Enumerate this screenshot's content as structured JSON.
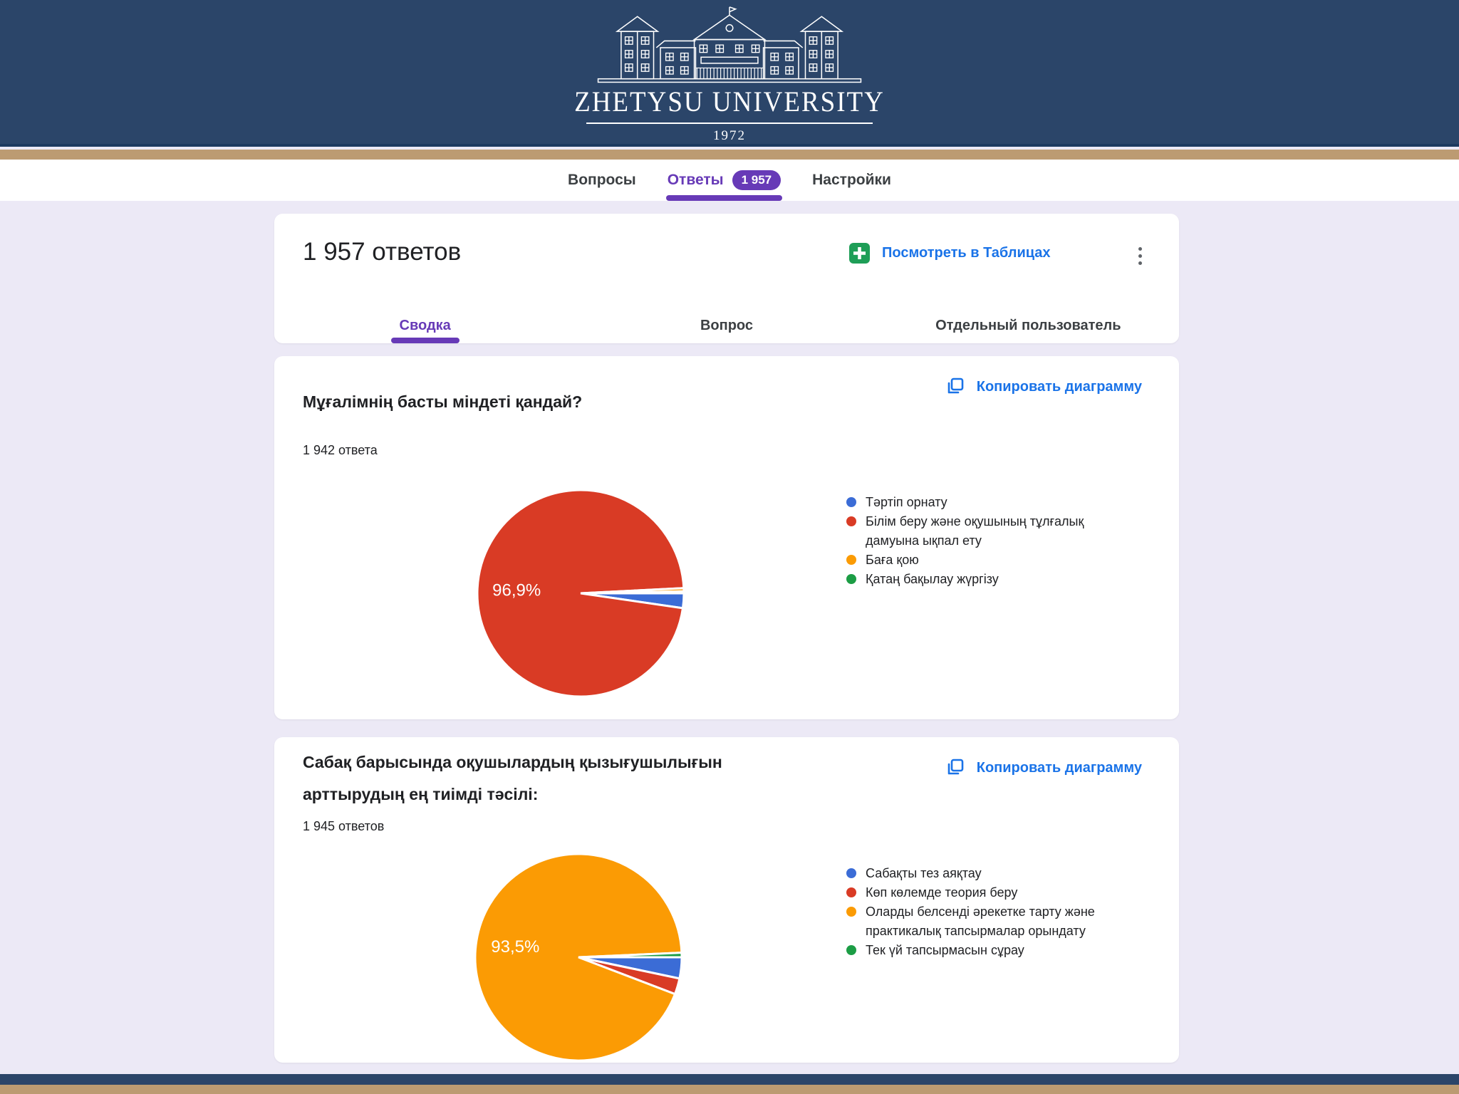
{
  "banner": {
    "university_name": "ZHETYSU UNIVERSITY",
    "established_year": "1972"
  },
  "nav": {
    "tabs": [
      {
        "label": "Вопросы",
        "active": false
      },
      {
        "label": "Ответы",
        "active": true,
        "badge": "1 957"
      },
      {
        "label": "Настройки",
        "active": false
      }
    ]
  },
  "summary_card": {
    "title": "1 957 ответов",
    "view_in_sheets_label": "Посмотреть в Таблицах",
    "tabs": [
      {
        "label": "Сводка",
        "active": true
      },
      {
        "label": "Вопрос",
        "active": false
      },
      {
        "label": "Отдельный пользователь",
        "active": false
      }
    ]
  },
  "copy_chart_label": "Копировать диаграмму",
  "colors": {
    "accent_purple": "#673AB7",
    "link_blue": "#1A73E8",
    "sheets_green": "#1E9E57",
    "page_background": "#ECE9F6",
    "banner_blue": "#2B4569",
    "stripe_tan": "#BC9B72",
    "slice_blue": "#3B6CD6",
    "slice_red": "#D93B25",
    "slice_orange": "#FB9B04",
    "slice_green": "#1C9D45"
  },
  "chart_data": [
    {
      "type": "pie",
      "title": "Мұғалімнің басты міндеті қандай?",
      "responses_label": "1 942 ответа",
      "center_label": "96,9%",
      "legend_position": "right",
      "slices": [
        {
          "label": "Тәртіп орнату",
          "value": 2.3,
          "color": "#3B6CD6"
        },
        {
          "label": "Білім беру және оқушының тұлғалық дамуына ықпал ету",
          "value": 96.9,
          "color": "#D93B25"
        },
        {
          "label": "Баға қою",
          "value": 0.5,
          "color": "#FB9B04"
        },
        {
          "label": "Қатаң бақылау жүргізу",
          "value": 0.3,
          "color": "#1C9D45"
        }
      ]
    },
    {
      "type": "pie",
      "title": "Сабақ барысында оқушылардың қызығушылығын арттырудың ең тиімді тәсілі:",
      "responses_label": "1 945 ответов",
      "center_label": "93,5%",
      "legend_position": "right",
      "slices": [
        {
          "label": "Сабақты тез аяқтау",
          "value": 3.3,
          "color": "#3B6CD6"
        },
        {
          "label": "Көп көлемде теория беру",
          "value": 2.5,
          "color": "#D93B25"
        },
        {
          "label": "Оларды белсенді әрекетке тарту және практикалық тапсырмалар орындату",
          "value": 93.5,
          "color": "#FB9B04"
        },
        {
          "label": "Тек үй тапсырмасын сұрау",
          "value": 0.7,
          "color": "#1C9D45"
        }
      ]
    }
  ]
}
